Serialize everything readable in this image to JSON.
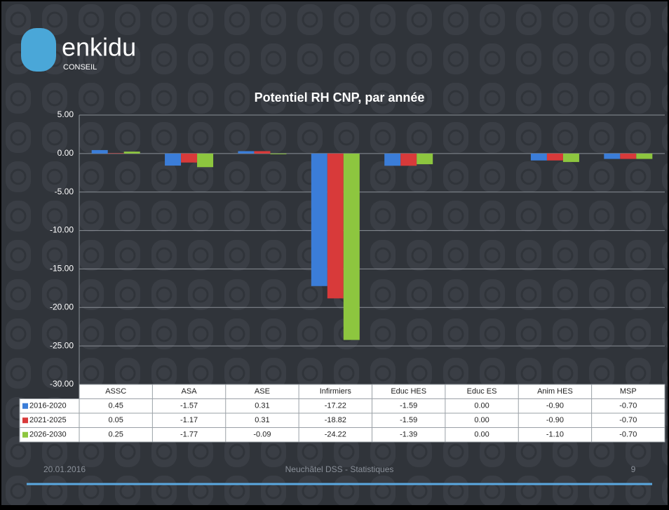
{
  "slide": {
    "logo": "enkidu",
    "logo_sub": "CONSEIL",
    "footer_date": "20.01.2016",
    "footer_center": "Neuchâtel DSS - Statistiques",
    "page_number": "9"
  },
  "chart_data": {
    "type": "bar",
    "title": "Potentiel RH CNP, par année",
    "categories": [
      "ASSC",
      "ASA",
      "ASE",
      "Infirmiers",
      "Educ HES",
      "Educ ES",
      "Anim HES",
      "MSP"
    ],
    "series": [
      {
        "name": "2016-2020",
        "color": "#3b7dd8",
        "values": [
          0.45,
          -1.57,
          0.31,
          -17.22,
          -1.59,
          0,
          -0.9,
          -0.7
        ],
        "value_labels": [
          "0.45",
          "-1.57",
          "0.31",
          "-17.22",
          "-1.59",
          "0.00",
          "-0.90",
          "-0.70"
        ]
      },
      {
        "name": "2021-2025",
        "color": "#d83a3a",
        "values": [
          0.05,
          -1.17,
          0.31,
          -18.82,
          -1.59,
          0,
          -0.9,
          -0.7
        ],
        "value_labels": [
          "0.05",
          "-1.17",
          "0.31",
          "-18.82",
          "-1.59",
          "0.00",
          "-0.90",
          "-0.70"
        ]
      },
      {
        "name": "2026-2030",
        "color": "#8dc63f",
        "values": [
          0.25,
          -1.77,
          -0.09,
          -24.22,
          -1.39,
          0,
          -1.1,
          -0.7
        ],
        "value_labels": [
          "0.25",
          "-1.77",
          "-0.09",
          "-24.22",
          "-1.39",
          "0.00",
          "-1.10",
          "-0.70"
        ]
      }
    ],
    "ylim": [
      -30,
      5
    ],
    "yticks": [
      {
        "value": 5,
        "label": "5.00"
      },
      {
        "value": 0,
        "label": "0.00"
      },
      {
        "value": -5,
        "label": "-5.00"
      },
      {
        "value": -10,
        "label": "-10.00"
      },
      {
        "value": -15,
        "label": "-15.00"
      },
      {
        "value": -20,
        "label": "-20.00"
      },
      {
        "value": -25,
        "label": "-25.00"
      },
      {
        "value": -30,
        "label": "-30.00"
      }
    ],
    "grid": true
  }
}
